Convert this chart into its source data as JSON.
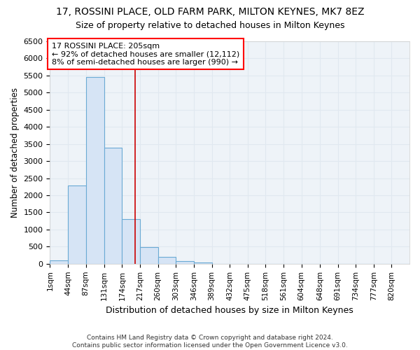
{
  "title1": "17, ROSSINI PLACE, OLD FARM PARK, MILTON KEYNES, MK7 8EZ",
  "title2": "Size of property relative to detached houses in Milton Keynes",
  "xlabel": "Distribution of detached houses by size in Milton Keynes",
  "ylabel": "Number of detached properties",
  "footnote": "Contains HM Land Registry data © Crown copyright and database right 2024.\nContains public sector information licensed under the Open Government Licence v3.0.",
  "bin_edges": [
    1,
    44,
    87,
    131,
    174,
    217,
    260,
    303,
    346,
    389,
    432,
    475,
    518,
    561,
    604,
    648,
    691,
    734,
    777,
    820,
    863
  ],
  "bar_heights": [
    100,
    2280,
    5450,
    3400,
    1300,
    480,
    195,
    80,
    30,
    0,
    0,
    0,
    0,
    0,
    0,
    0,
    0,
    0,
    0,
    0
  ],
  "bar_facecolor": "#d6e4f5",
  "bar_edgecolor": "#6aaad4",
  "vline_x": 205,
  "vline_color": "#cc0000",
  "ylim": [
    0,
    6500
  ],
  "yticks": [
    0,
    500,
    1000,
    1500,
    2000,
    2500,
    3000,
    3500,
    4000,
    4500,
    5000,
    5500,
    6000,
    6500
  ],
  "annotation_text": "17 ROSSINI PLACE: 205sqm\n← 92% of detached houses are smaller (12,112)\n8% of semi-detached houses are larger (990) →",
  "bg_color": "#ffffff",
  "grid_color": "#e8eef5",
  "title1_fontsize": 10,
  "title2_fontsize": 9
}
